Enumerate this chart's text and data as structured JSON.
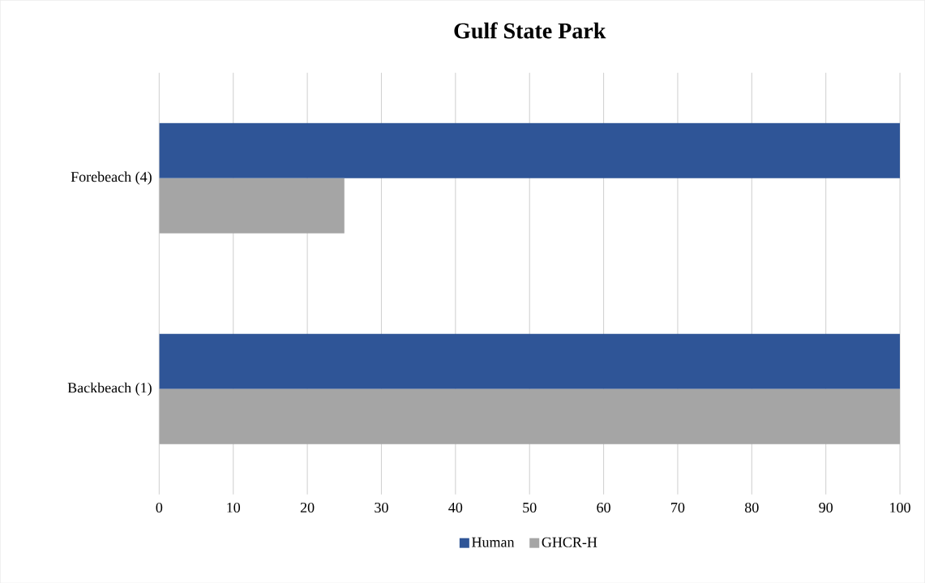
{
  "chart_data": {
    "type": "bar",
    "orientation": "horizontal",
    "title": "Gulf State Park",
    "categories": [
      "Forebeach (4)",
      "Backbeach (1)"
    ],
    "series": [
      {
        "name": "Human",
        "color": "#2f5597",
        "values": [
          100,
          100
        ]
      },
      {
        "name": "GHCR-H",
        "color": "#a5a5a5",
        "values": [
          25,
          100
        ]
      }
    ],
    "xlim": [
      0,
      100
    ],
    "xticks": [
      0,
      10,
      20,
      30,
      40,
      50,
      60,
      70,
      80,
      90,
      100
    ],
    "grid": "x",
    "legend": "bottom"
  }
}
